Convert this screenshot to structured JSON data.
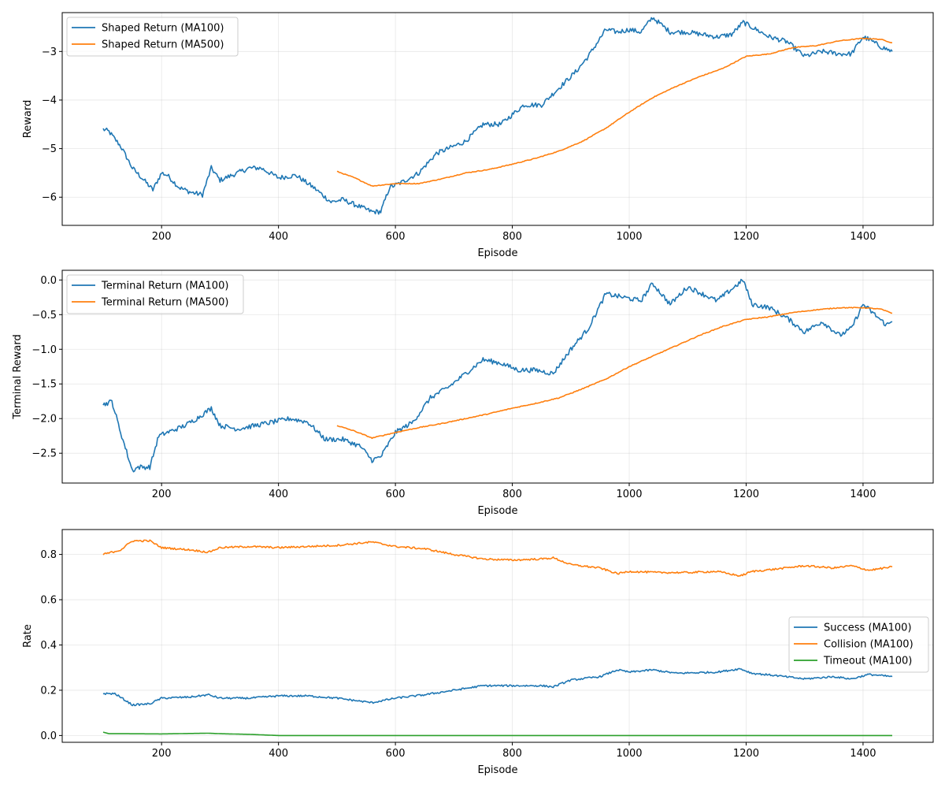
{
  "colors": {
    "blue": "#1f77b4",
    "orange": "#ff7f0e",
    "green": "#2ca02c"
  },
  "chart_data": [
    {
      "type": "line",
      "xlabel": "Episode",
      "ylabel": "Reward",
      "xlim": [
        30,
        1520
      ],
      "ylim": [
        -6.58,
        -2.2
      ],
      "xticks": [
        200,
        400,
        600,
        800,
        1000,
        1200,
        1400
      ],
      "yticks": [
        -6,
        -5,
        -4,
        -3
      ],
      "ytick_labels": [
        "−6",
        "−5",
        "−4",
        "−3"
      ],
      "grid": true,
      "legend": "upper-left",
      "series": [
        {
          "name": "Shaped Return (MA100)",
          "color": "blue",
          "noise": 0.05,
          "x": [
            100,
            110,
            130,
            150,
            170,
            185,
            200,
            210,
            230,
            250,
            270,
            285,
            300,
            320,
            350,
            370,
            400,
            430,
            460,
            490,
            510,
            540,
            560,
            575,
            590,
            610,
            640,
            670,
            700,
            720,
            750,
            780,
            820,
            850,
            880,
            910,
            930,
            960,
            980,
            1000,
            1020,
            1040,
            1070,
            1100,
            1150,
            1175,
            1195,
            1210,
            1240,
            1270,
            1300,
            1330,
            1360,
            1380,
            1400,
            1410,
            1430,
            1450
          ],
          "y": [
            -4.6,
            -4.65,
            -4.95,
            -5.4,
            -5.65,
            -5.85,
            -5.5,
            -5.55,
            -5.8,
            -5.9,
            -5.95,
            -5.4,
            -5.65,
            -5.55,
            -5.4,
            -5.4,
            -5.6,
            -5.55,
            -5.8,
            -6.1,
            -6.05,
            -6.2,
            -6.3,
            -6.3,
            -5.8,
            -5.7,
            -5.5,
            -5.1,
            -4.95,
            -4.85,
            -4.5,
            -4.5,
            -4.1,
            -4.1,
            -3.75,
            -3.4,
            -3.1,
            -2.55,
            -2.6,
            -2.55,
            -2.6,
            -2.3,
            -2.6,
            -2.6,
            -2.7,
            -2.65,
            -2.4,
            -2.5,
            -2.7,
            -2.8,
            -3.1,
            -3.0,
            -3.05,
            -3.05,
            -2.7,
            -2.75,
            -2.9,
            -3.0
          ]
        },
        {
          "name": "Shaped Return (MA500)",
          "color": "orange",
          "noise": 0.008,
          "x": [
            500,
            530,
            560,
            600,
            640,
            680,
            720,
            760,
            800,
            840,
            880,
            920,
            960,
            1000,
            1040,
            1080,
            1120,
            1160,
            1200,
            1240,
            1280,
            1320,
            1360,
            1400,
            1430,
            1450
          ],
          "y": [
            -5.47,
            -5.6,
            -5.77,
            -5.72,
            -5.72,
            -5.62,
            -5.5,
            -5.43,
            -5.32,
            -5.2,
            -5.05,
            -4.85,
            -4.58,
            -4.25,
            -3.95,
            -3.72,
            -3.52,
            -3.35,
            -3.1,
            -3.05,
            -2.92,
            -2.88,
            -2.78,
            -2.73,
            -2.75,
            -2.82
          ]
        }
      ]
    },
    {
      "type": "line",
      "xlabel": "Episode",
      "ylabel": "Terminal Reward",
      "xlim": [
        30,
        1520
      ],
      "ylim": [
        -2.93,
        0.14
      ],
      "xticks": [
        200,
        400,
        600,
        800,
        1000,
        1200,
        1400
      ],
      "yticks": [
        -2.5,
        -2.0,
        -1.5,
        -1.0,
        -0.5,
        0.0
      ],
      "ytick_labels": [
        "−2.5",
        "−2.0",
        "−1.5",
        "−1.0",
        "−0.5",
        "0.0"
      ],
      "grid": true,
      "legend": "upper-left",
      "series": [
        {
          "name": "Terminal Return (MA100)",
          "color": "blue",
          "noise": 0.035,
          "x": [
            100,
            115,
            130,
            150,
            160,
            180,
            195,
            210,
            240,
            260,
            285,
            300,
            330,
            360,
            390,
            420,
            450,
            480,
            510,
            540,
            560,
            575,
            600,
            630,
            660,
            690,
            720,
            750,
            780,
            810,
            840,
            870,
            900,
            930,
            960,
            990,
            1020,
            1040,
            1070,
            1100,
            1150,
            1180,
            1195,
            1210,
            1240,
            1270,
            1300,
            1330,
            1360,
            1380,
            1400,
            1420,
            1440,
            1450
          ],
          "y": [
            -1.8,
            -1.75,
            -2.2,
            -2.75,
            -2.7,
            -2.7,
            -2.25,
            -2.2,
            -2.1,
            -2.0,
            -1.85,
            -2.1,
            -2.15,
            -2.1,
            -2.05,
            -2.0,
            -2.05,
            -2.3,
            -2.3,
            -2.4,
            -2.6,
            -2.55,
            -2.2,
            -2.05,
            -1.7,
            -1.55,
            -1.35,
            -1.15,
            -1.2,
            -1.3,
            -1.3,
            -1.35,
            -1.0,
            -0.7,
            -0.2,
            -0.25,
            -0.3,
            -0.05,
            -0.35,
            -0.1,
            -0.3,
            -0.1,
            0.0,
            -0.35,
            -0.4,
            -0.55,
            -0.75,
            -0.6,
            -0.8,
            -0.7,
            -0.35,
            -0.5,
            -0.65,
            -0.6
          ]
        },
        {
          "name": "Terminal Return (MA500)",
          "color": "orange",
          "noise": 0.006,
          "x": [
            500,
            530,
            560,
            600,
            640,
            680,
            720,
            760,
            800,
            840,
            880,
            920,
            960,
            1000,
            1040,
            1080,
            1120,
            1160,
            1200,
            1240,
            1280,
            1320,
            1360,
            1400,
            1430,
            1450
          ],
          "y": [
            -2.1,
            -2.18,
            -2.28,
            -2.2,
            -2.13,
            -2.07,
            -2.0,
            -1.93,
            -1.85,
            -1.78,
            -1.7,
            -1.57,
            -1.43,
            -1.25,
            -1.1,
            -0.95,
            -0.8,
            -0.67,
            -0.57,
            -0.53,
            -0.47,
            -0.43,
            -0.4,
            -0.4,
            -0.42,
            -0.48
          ]
        }
      ]
    },
    {
      "type": "line",
      "xlabel": "Episode",
      "ylabel": "Rate",
      "xlim": [
        30,
        1520
      ],
      "ylim": [
        -0.03,
        0.91
      ],
      "xticks": [
        200,
        400,
        600,
        800,
        1000,
        1200,
        1400
      ],
      "yticks": [
        0.0,
        0.2,
        0.4,
        0.6,
        0.8
      ],
      "ytick_labels": [
        "0.0",
        "0.2",
        "0.4",
        "0.6",
        "0.8"
      ],
      "grid": true,
      "legend": "center-right",
      "series": [
        {
          "name": "Success (MA100)",
          "color": "blue",
          "noise": 0.004,
          "x": [
            100,
            120,
            150,
            180,
            200,
            250,
            280,
            300,
            350,
            400,
            450,
            500,
            560,
            600,
            650,
            700,
            750,
            800,
            850,
            870,
            900,
            950,
            980,
            1000,
            1040,
            1080,
            1150,
            1190,
            1210,
            1250,
            1300,
            1350,
            1380,
            1410,
            1450
          ],
          "y": [
            0.185,
            0.185,
            0.135,
            0.14,
            0.165,
            0.17,
            0.18,
            0.165,
            0.165,
            0.175,
            0.175,
            0.165,
            0.145,
            0.165,
            0.18,
            0.2,
            0.22,
            0.22,
            0.22,
            0.215,
            0.245,
            0.26,
            0.29,
            0.28,
            0.29,
            0.275,
            0.28,
            0.295,
            0.275,
            0.265,
            0.25,
            0.26,
            0.25,
            0.27,
            0.26
          ]
        },
        {
          "name": "Collision (MA100)",
          "color": "orange",
          "noise": 0.004,
          "x": [
            100,
            130,
            150,
            180,
            200,
            250,
            280,
            300,
            350,
            400,
            450,
            500,
            560,
            600,
            650,
            700,
            750,
            800,
            850,
            870,
            900,
            950,
            980,
            1000,
            1050,
            1100,
            1150,
            1190,
            1210,
            1250,
            1300,
            1350,
            1380,
            1410,
            1450
          ],
          "y": [
            0.8,
            0.82,
            0.86,
            0.86,
            0.83,
            0.82,
            0.81,
            0.83,
            0.835,
            0.83,
            0.835,
            0.84,
            0.855,
            0.835,
            0.825,
            0.8,
            0.78,
            0.775,
            0.78,
            0.785,
            0.755,
            0.74,
            0.715,
            0.725,
            0.72,
            0.72,
            0.725,
            0.705,
            0.725,
            0.735,
            0.75,
            0.74,
            0.75,
            0.73,
            0.745
          ]
        },
        {
          "name": "Timeout (MA100)",
          "color": "green",
          "noise": 0.0,
          "x": [
            100,
            110,
            130,
            200,
            250,
            280,
            300,
            350,
            400,
            450,
            1450
          ],
          "y": [
            0.015,
            0.008,
            0.008,
            0.007,
            0.009,
            0.01,
            0.008,
            0.005,
            0.0,
            0.0,
            0.0
          ]
        }
      ]
    }
  ]
}
